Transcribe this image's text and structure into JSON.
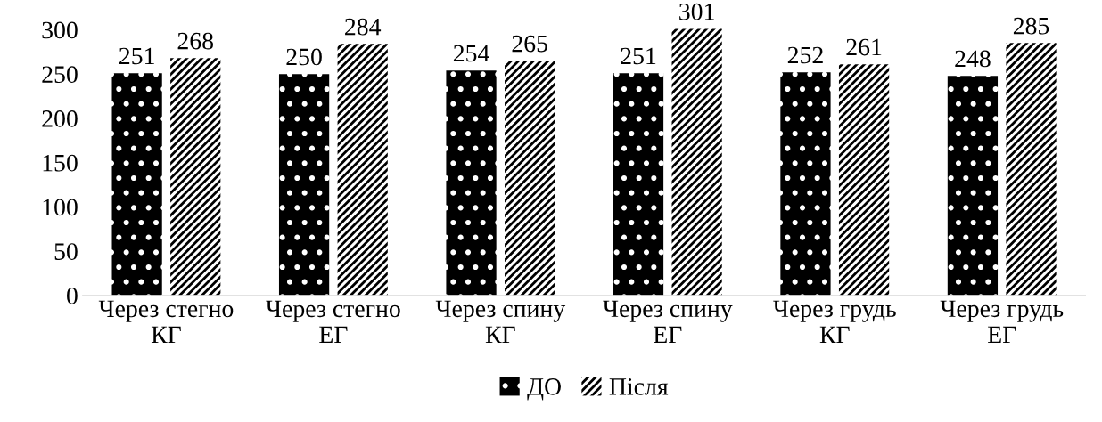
{
  "chart_data": {
    "type": "bar",
    "categories": [
      "Через стегно\nКГ",
      "Через стегно\nЕГ",
      "Через спину\nКГ",
      "Через спину\nЕГ",
      "Через грудь\nКГ",
      "Через грудь\nЕГ"
    ],
    "series": [
      {
        "name": "ДО",
        "color": "#000000",
        "values": [
          251,
          250,
          254,
          251,
          252,
          248
        ]
      },
      {
        "name": "Після",
        "color": "#ffffff",
        "values": [
          268,
          284,
          265,
          301,
          261,
          285
        ]
      }
    ],
    "ylim": [
      0,
      305
    ],
    "yticks": [
      0,
      50,
      100,
      150,
      200,
      250,
      300
    ],
    "grid": false,
    "legend": "bottom",
    "data_labels": true
  }
}
